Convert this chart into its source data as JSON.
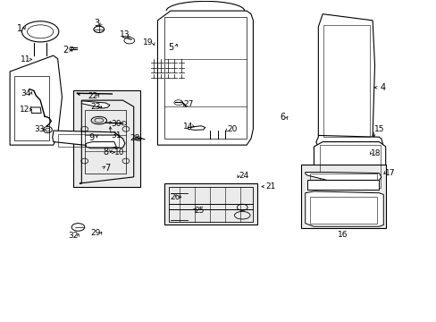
{
  "title": "",
  "background_color": "#ffffff",
  "line_color": "#000000",
  "label_color": "#000000",
  "fig_width": 4.89,
  "fig_height": 3.6,
  "dpi": 100
}
